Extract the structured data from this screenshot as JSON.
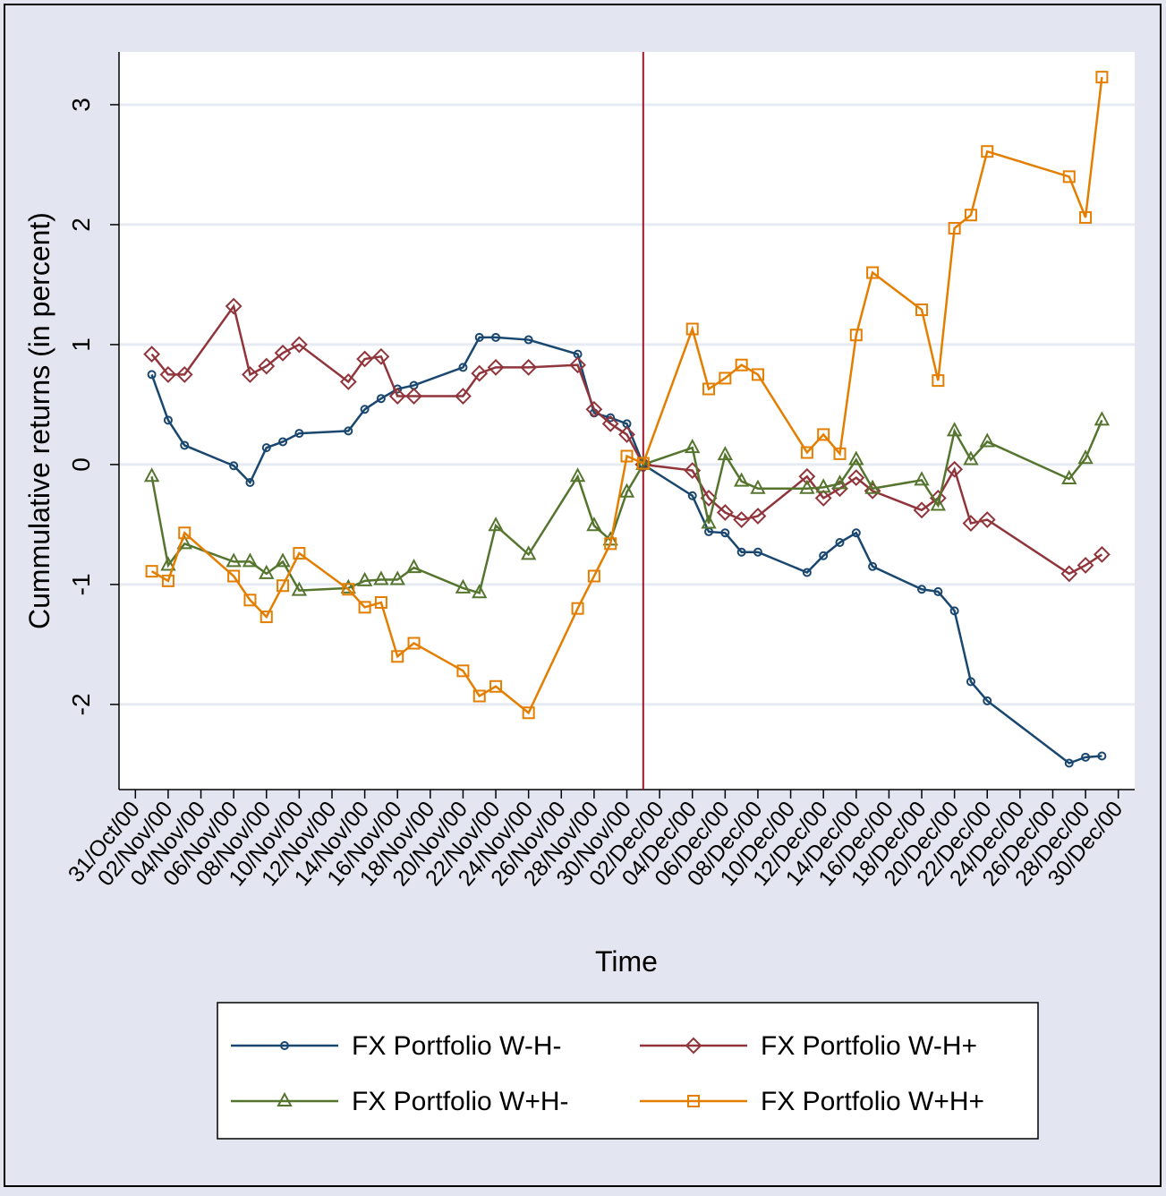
{
  "chart_data": {
    "type": "line",
    "x_label": "Time",
    "y_label": "Cummulative returns (in percent)",
    "x": [
      "01/Nov/00",
      "02/Nov/00",
      "03/Nov/00",
      "06/Nov/00",
      "07/Nov/00",
      "08/Nov/00",
      "09/Nov/00",
      "10/Nov/00",
      "13/Nov/00",
      "14/Nov/00",
      "15/Nov/00",
      "16/Nov/00",
      "17/Nov/00",
      "20/Nov/00",
      "21/Nov/00",
      "22/Nov/00",
      "24/Nov/00",
      "27/Nov/00",
      "28/Nov/00",
      "29/Nov/00",
      "30/Nov/00",
      "01/Dec/00",
      "04/Dec/00",
      "05/Dec/00",
      "06/Dec/00",
      "07/Dec/00",
      "08/Dec/00",
      "11/Dec/00",
      "12/Dec/00",
      "13/Dec/00",
      "14/Dec/00",
      "15/Dec/00",
      "18/Dec/00",
      "19/Dec/00",
      "20/Dec/00",
      "21/Dec/00",
      "22/Dec/00",
      "27/Dec/00",
      "28/Dec/00",
      "29/Dec/00"
    ],
    "series": [
      {
        "name": "FX Portfolio W-H-",
        "color": "#1a476f",
        "marker": "circle",
        "values": [
          0.75,
          0.37,
          0.16,
          -0.01,
          -0.15,
          0.14,
          0.19,
          0.26,
          0.28,
          0.46,
          0.55,
          0.63,
          0.66,
          0.81,
          1.06,
          1.06,
          1.04,
          0.92,
          0.43,
          0.39,
          0.34,
          0,
          -0.26,
          -0.56,
          -0.57,
          -0.73,
          -0.73,
          -0.9,
          -0.76,
          -0.65,
          -0.57,
          -0.85,
          -1.04,
          -1.06,
          -1.22,
          -1.81,
          -1.97,
          -2.49,
          -2.44,
          -2.43
        ]
      },
      {
        "name": "FX Portfolio W-H+",
        "color": "#90353b",
        "marker": "diamond",
        "values": [
          0.92,
          0.75,
          0.75,
          1.32,
          0.75,
          0.82,
          0.93,
          1.0,
          0.69,
          0.88,
          0.9,
          0.57,
          0.57,
          0.57,
          0.76,
          0.81,
          0.81,
          0.83,
          0.46,
          0.34,
          0.25,
          0,
          -0.05,
          -0.28,
          -0.4,
          -0.46,
          -0.43,
          -0.1,
          -0.28,
          -0.2,
          -0.11,
          -0.22,
          -0.38,
          -0.28,
          -0.04,
          -0.49,
          -0.46,
          -0.91,
          -0.84,
          -0.75
        ]
      },
      {
        "name": "FX Portfolio W+H-",
        "color": "#55752f",
        "marker": "triangle",
        "values": [
          -0.1,
          -0.84,
          -0.66,
          -0.81,
          -0.81,
          -0.91,
          -0.81,
          -1.05,
          -1.03,
          -0.97,
          -0.96,
          -0.96,
          -0.86,
          -1.03,
          -1.07,
          -0.51,
          -0.75,
          -0.1,
          -0.51,
          -0.63,
          -0.23,
          0,
          0.14,
          -0.49,
          0.08,
          -0.14,
          -0.2,
          -0.2,
          -0.19,
          -0.16,
          0.04,
          -0.2,
          -0.13,
          -0.34,
          0.28,
          0.04,
          0.19,
          -0.12,
          0.05,
          0.37
        ]
      },
      {
        "name": "FX Portfolio W+H+",
        "color": "#e37e00",
        "marker": "square",
        "values": [
          -0.89,
          -0.97,
          -0.57,
          -0.93,
          -1.13,
          -1.27,
          -1.01,
          -0.74,
          -1.04,
          -1.19,
          -1.15,
          -1.6,
          -1.49,
          -1.72,
          -1.93,
          -1.85,
          -2.07,
          -1.2,
          -0.93,
          -0.66,
          0.07,
          0.01,
          1.13,
          0.63,
          0.72,
          0.83,
          0.75,
          0.1,
          0.25,
          0.09,
          1.08,
          1.6,
          1.29,
          0.7,
          1.97,
          2.08,
          2.61,
          2.4,
          2.06,
          3.23
        ]
      }
    ],
    "xlim": [
      "30/Oct/00",
      "31/Dec/00"
    ],
    "xticks": [
      "31/Oct/00",
      "02/Nov/00",
      "04/Nov/00",
      "06/Nov/00",
      "08/Nov/00",
      "10/Nov/00",
      "12/Nov/00",
      "14/Nov/00",
      "16/Nov/00",
      "18/Nov/00",
      "20/Nov/00",
      "22/Nov/00",
      "24/Nov/00",
      "26/Nov/00",
      "28/Nov/00",
      "30/Nov/00",
      "02/Dec/00",
      "04/Dec/00",
      "06/Dec/00",
      "08/Dec/00",
      "10/Dec/00",
      "12/Dec/00",
      "14/Dec/00",
      "16/Dec/00",
      "18/Dec/00",
      "20/Dec/00",
      "22/Dec/00",
      "24/Dec/00",
      "26/Dec/00",
      "28/Dec/00",
      "30/Dec/00"
    ],
    "ylim": [
      -2.71,
      3.44
    ],
    "yticks": [
      -2,
      -1,
      0,
      1,
      2,
      3
    ],
    "grid": true,
    "vline": {
      "x": "01/Dec/00",
      "color": "#a0162c"
    },
    "legend_position": "bottom"
  }
}
